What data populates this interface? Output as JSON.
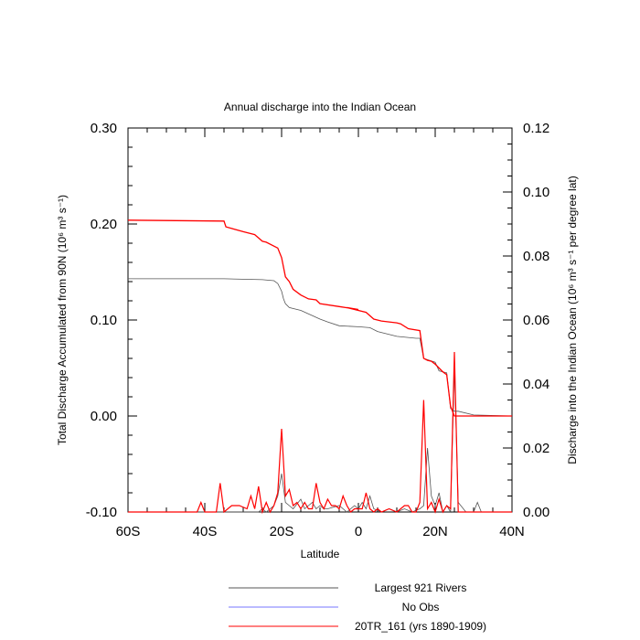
{
  "chart_data": {
    "type": "line",
    "title": "Annual discharge into the Indian Ocean",
    "xlabel": "Latitude",
    "ylabel_left": "Total Discharge Accumulated from 90N (10⁶ m³ s⁻¹)",
    "ylabel_right": "Discharge into the Indian Ocean (10⁶ m³ s⁻¹ per degree lat)",
    "xlim": [
      -60,
      40
    ],
    "ylim_left": [
      -0.1,
      0.3
    ],
    "ylim_right": [
      0.0,
      0.12
    ],
    "x_ticks": [
      -60,
      -40,
      -20,
      0,
      20,
      40
    ],
    "x_tick_labels": [
      "60S",
      "40S",
      "20S",
      "0",
      "20N",
      "40N"
    ],
    "y_left_ticks": [
      -0.1,
      0.0,
      0.1,
      0.2,
      0.3
    ],
    "y_left_tick_labels": [
      "-0.10",
      "0.00",
      "0.10",
      "0.20",
      "0.30"
    ],
    "y_right_ticks": [
      0.0,
      0.02,
      0.04,
      0.06,
      0.08,
      0.1,
      0.12
    ],
    "y_right_tick_labels": [
      "0.00",
      "0.02",
      "0.04",
      "0.06",
      "0.08",
      "0.10",
      "0.12"
    ],
    "grid": false,
    "legend_position": "bottom",
    "series": [
      {
        "name": "Largest 921 Rivers",
        "color": "#555555",
        "axis": "left",
        "x": [
          -60,
          -35,
          -25,
          -22,
          -21,
          -20,
          -19.5,
          -19,
          -18,
          -15,
          -10,
          -8,
          -5,
          0,
          3,
          5,
          10,
          15,
          16,
          17,
          20,
          21,
          22,
          23,
          24,
          25,
          26,
          30,
          40
        ],
        "y": [
          0.143,
          0.143,
          0.142,
          0.141,
          0.138,
          0.13,
          0.122,
          0.117,
          0.113,
          0.11,
          0.101,
          0.098,
          0.094,
          0.093,
          0.092,
          0.088,
          0.083,
          0.081,
          0.081,
          0.06,
          0.056,
          0.047,
          0.046,
          0.045,
          0.008,
          0.005,
          0.005,
          0.001,
          0.0
        ]
      },
      {
        "name": "No Obs",
        "color": "#7777ff",
        "axis": "left",
        "x": [],
        "y": []
      },
      {
        "name": "20TR_161 (yrs 1890-1909)",
        "color": "#ff0000",
        "axis": "left",
        "x": [
          -60,
          -35,
          -34.5,
          -30,
          -27,
          -25,
          -24,
          -21,
          -20,
          -19,
          -18,
          -17,
          -15,
          -13,
          -11,
          -10,
          -5,
          0,
          -3,
          2,
          4,
          6,
          10,
          11,
          13,
          16,
          17,
          18,
          19,
          20,
          21,
          22,
          23,
          24,
          25,
          26,
          40
        ],
        "y": [
          0.204,
          0.203,
          0.197,
          0.192,
          0.189,
          0.182,
          0.181,
          0.175,
          0.165,
          0.145,
          0.14,
          0.132,
          0.126,
          0.122,
          0.121,
          0.117,
          0.114,
          0.111,
          0.113,
          0.108,
          0.101,
          0.099,
          0.097,
          0.096,
          0.091,
          0.089,
          0.06,
          0.058,
          0.057,
          0.054,
          0.05,
          0.046,
          0.043,
          0.01,
          0.0,
          0.0,
          0.0
        ]
      }
    ],
    "series_right": [
      {
        "name": "Largest 921 Rivers",
        "color": "#555555",
        "x": [
          -60,
          -30,
          -26,
          -25,
          -24,
          -22,
          -21,
          -20,
          -19,
          -18,
          -17,
          -15,
          -14,
          -13,
          -12,
          -11,
          -10,
          -9,
          -8,
          -5,
          -3,
          -1,
          0,
          1,
          2,
          3,
          4,
          6,
          8,
          10,
          12,
          14,
          16,
          17,
          18,
          19,
          20,
          21,
          22,
          23,
          24,
          25,
          26,
          28,
          30,
          31,
          32,
          40
        ],
        "y": [
          0.0,
          0.0,
          0.0,
          0.001,
          0.0,
          0.002,
          0.005,
          0.012,
          0.003,
          0.002,
          0.001,
          0.004,
          0.001,
          0.002,
          0.003,
          0.001,
          0.002,
          0.001,
          0.001,
          0.002,
          0.0,
          0.002,
          0.001,
          0.003,
          0.001,
          0.005,
          0.001,
          0.0,
          0.001,
          0.0,
          0.001,
          0.0,
          0.001,
          0.002,
          0.02,
          0.005,
          0.002,
          0.006,
          0.0,
          0.002,
          0.0,
          0.045,
          0.003,
          0.0,
          0.0,
          0.003,
          0.0,
          0.0
        ]
      },
      {
        "name": "20TR_161 (yrs 1890-1909)",
        "color": "#ff0000",
        "x": [
          -60,
          -42,
          -41,
          -40,
          -37,
          -36,
          -35,
          -34,
          -33,
          -31,
          -29,
          -28,
          -27,
          -26,
          -25,
          -24,
          -23,
          -22,
          -21,
          -20,
          -19,
          -18,
          -17,
          -16,
          -15,
          -14,
          -13,
          -12,
          -11,
          -10,
          -9,
          -8,
          -7,
          -6,
          -5,
          -4,
          -3,
          -2,
          -1,
          0,
          1,
          2,
          3,
          4,
          5,
          6,
          8,
          10,
          12,
          13,
          14,
          15,
          16,
          17,
          18,
          19,
          20,
          21,
          22,
          23,
          24,
          25,
          26,
          30,
          40
        ],
        "y": [
          0.0,
          0.0,
          0.003,
          0.0,
          0.0,
          0.009,
          0.0,
          0.001,
          0.002,
          0.002,
          0.001,
          0.005,
          0.001,
          0.008,
          0.0,
          0.003,
          0.0,
          0.002,
          0.006,
          0.026,
          0.005,
          0.007,
          0.002,
          0.003,
          0.001,
          0.003,
          0.001,
          0.001,
          0.009,
          0.003,
          0.001,
          0.004,
          0.002,
          0.002,
          0.001,
          0.005,
          0.002,
          0.0,
          0.001,
          0.001,
          0.001,
          0.006,
          0.001,
          0.0,
          0.001,
          0.0,
          0.001,
          0.0,
          0.002,
          0.002,
          0.0,
          0.0,
          0.003,
          0.035,
          0.001,
          0.003,
          0.0,
          0.004,
          0.0,
          0.002,
          0.001,
          0.05,
          0.0,
          0.0,
          0.0
        ]
      }
    ]
  }
}
